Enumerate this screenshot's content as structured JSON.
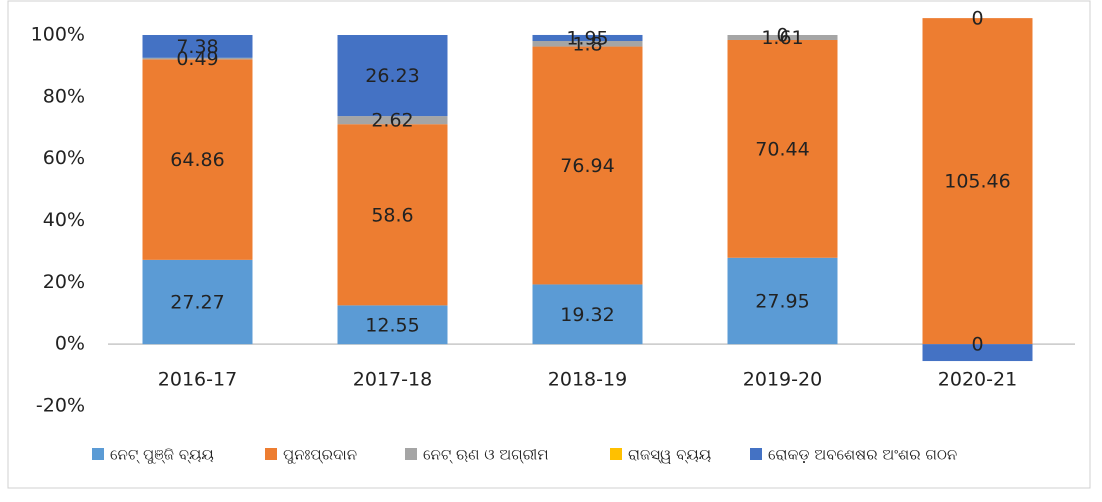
{
  "chart_data": {
    "type": "bar",
    "stacked": true,
    "categories": [
      "2016-17",
      "2017-18",
      "2018-19",
      "2019-20",
      "2020-21"
    ],
    "series": [
      {
        "name": "ନେଟ୍ ପୁଞ୍ଜି ବ୍ୟୟ",
        "color": "#5b9bd5",
        "values": [
          27.27,
          12.55,
          19.32,
          27.95,
          0
        ]
      },
      {
        "name": "ପୁନଃପ୍ରଦାନ",
        "color": "#ed7d31",
        "values": [
          64.86,
          58.6,
          76.94,
          70.44,
          105.46
        ]
      },
      {
        "name": "ନେଟ୍ ଋଣ ଓ ଅଗ୍ରୀମ",
        "color": "#a5a5a5",
        "values": [
          0.49,
          2.62,
          1.8,
          1.61,
          0
        ]
      },
      {
        "name": "ରାଜସ୍ୱ ବ୍ୟୟ",
        "color": "#ffc000",
        "values": [
          0,
          0,
          0,
          0,
          0
        ],
        "labels": false
      },
      {
        "name": "ରୋକଡ଼ ଅବଶେଷର ଅଂଶର ଗଠନ",
        "color": "#4472c4",
        "values": [
          7.38,
          26.23,
          1.95,
          0,
          -5.46
        ],
        "value_labels": [
          "7.38",
          "26.23",
          "1.95",
          "0",
          null
        ]
      }
    ],
    "ylim": [
      -20,
      100
    ],
    "yticks": [
      {
        "value": -20,
        "label": "-20%"
      },
      {
        "value": 0,
        "label": "0%"
      },
      {
        "value": 20,
        "label": "20%"
      },
      {
        "value": 40,
        "label": "40%"
      },
      {
        "value": 60,
        "label": "60%"
      },
      {
        "value": 80,
        "label": "80%"
      },
      {
        "value": 100,
        "label": "100%"
      }
    ],
    "legend": "bottom"
  }
}
